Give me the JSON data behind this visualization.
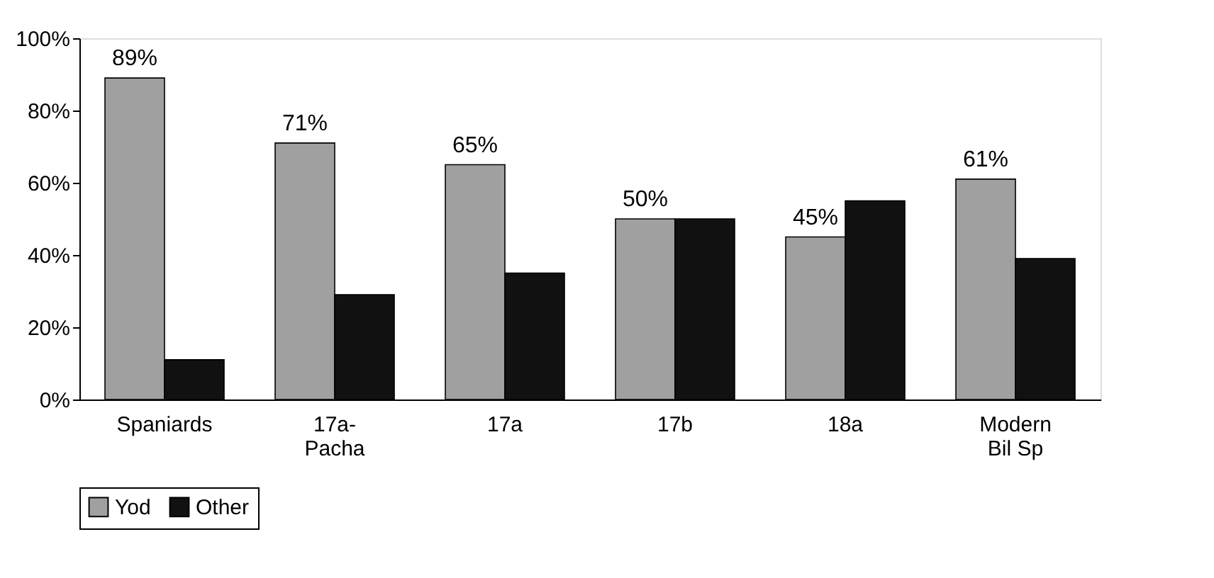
{
  "chart_data": {
    "type": "bar",
    "categories": [
      "Spaniards",
      "17a-\nPacha",
      "17a",
      "17b",
      "18a",
      "Modern\nBil Sp"
    ],
    "series": [
      {
        "name": "Yod",
        "color": "#a0a0a0",
        "values": [
          89,
          71,
          65,
          50,
          45,
          61
        ],
        "value_labels": [
          "89%",
          "71%",
          "65%",
          "50%",
          "45%",
          "61%"
        ]
      },
      {
        "name": "Other",
        "color": "#111111",
        "values": [
          11,
          29,
          35,
          50,
          55,
          39
        ]
      }
    ],
    "ylim": [
      0,
      100
    ],
    "yticks": [
      {
        "value": 0,
        "label": "0%"
      },
      {
        "value": 20,
        "label": "20%"
      },
      {
        "value": 40,
        "label": "40%"
      },
      {
        "value": 60,
        "label": "60%"
      },
      {
        "value": 80,
        "label": "80%"
      },
      {
        "value": 100,
        "label": "100%"
      }
    ],
    "grid": false,
    "legend": "bottom"
  }
}
